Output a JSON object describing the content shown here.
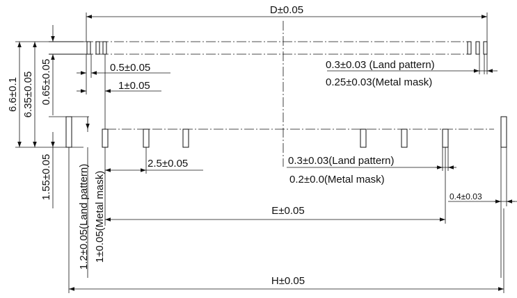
{
  "labels": {
    "D": "D±0.05",
    "land_top": "0.3±0.03 (Land pattern)",
    "mask_top": "0.25±0.03(Metal mask)",
    "p05": "0.5±0.05",
    "p1": "1±0.05",
    "h66": "6.6±0.1",
    "h635": "6.35±0.05",
    "h065": "0.65±0.05",
    "p25": "2.5±0.05",
    "land_mid": "0.3±0.03(Land pattern)",
    "mask_mid": "0.2±0.0(Metal mask)",
    "p04": "0.4±0.03",
    "h155": "1.55±0.05",
    "v_land": "1.2±0.05(Land pattern)",
    "v_mask": "1±0.05(Metal mask)",
    "E": "E±0.05",
    "H": "H±0.05"
  }
}
